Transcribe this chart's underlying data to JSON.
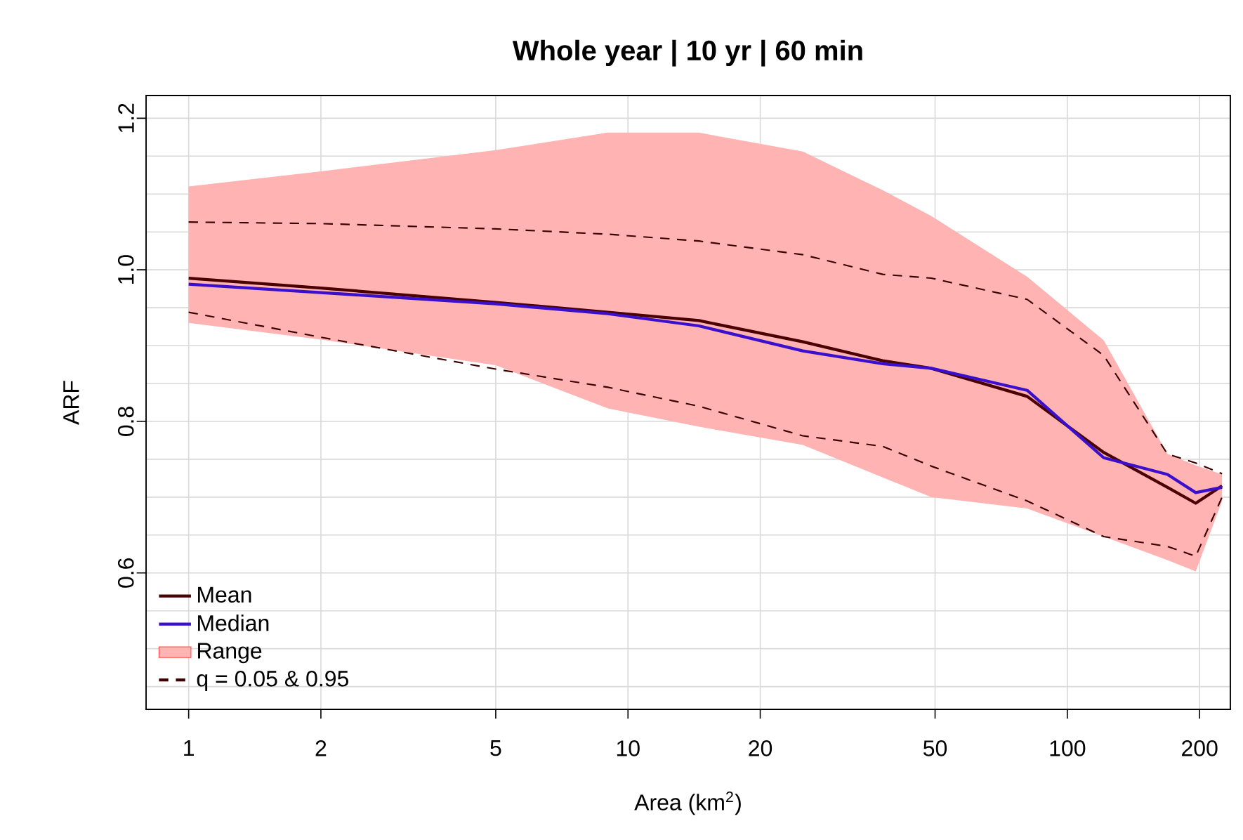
{
  "chart_data": {
    "type": "line",
    "title": "Whole year | 10 yr |  60 min",
    "xlabel": "Area (km$^{2}$)",
    "ylabel": "ARF",
    "log": "x",
    "x": [
      1,
      2,
      5,
      9,
      14.5,
      25,
      38,
      49,
      81,
      121,
      169,
      196,
      225
    ],
    "xlim": [
      0.8,
      235
    ],
    "xticks": [
      1,
      2,
      5,
      10,
      20,
      50,
      100,
      200
    ],
    "ylim": [
      0.42,
      1.23
    ],
    "yticks": [
      {
        "value": 0.45,
        "label": null
      },
      {
        "value": 0.5,
        "label": null
      },
      {
        "value": 0.55,
        "label": null
      },
      0.6,
      {
        "value": 0.65,
        "label": null
      },
      {
        "value": 0.7,
        "label": null
      },
      {
        "value": 0.75,
        "label": null
      },
      0.8,
      {
        "value": 0.85,
        "label": null
      },
      {
        "value": 0.9,
        "label": null
      },
      {
        "value": 0.95,
        "label": null
      },
      {
        "value": 1.0,
        "label": "1.0"
      },
      {
        "value": 1.05,
        "label": null
      },
      {
        "value": 1.1,
        "label": null
      },
      {
        "value": 1.15,
        "label": null
      },
      1.2
    ],
    "grid": true,
    "legend": "bottom left",
    "series": [
      {
        "name": "Mean",
        "color": "#4a0000",
        "values": [
          0.989,
          0.976,
          0.957,
          0.944,
          0.933,
          0.905,
          0.88,
          0.87,
          0.833,
          0.759,
          0.713,
          0.692,
          0.715
        ]
      },
      {
        "name": "Median",
        "color": "#3a10cc",
        "values": [
          0.981,
          0.97,
          0.955,
          0.942,
          0.926,
          0.893,
          0.876,
          0.87,
          0.841,
          0.752,
          0.73,
          0.706,
          0.713
        ]
      },
      {
        "name": "Range",
        "color": "#ffb3b3",
        "values": [
          null,
          null,
          null,
          null,
          null,
          null,
          null,
          null,
          null,
          null,
          null,
          null,
          null
        ],
        "lower": [
          0.93,
          0.908,
          0.874,
          0.817,
          0.793,
          0.769,
          0.726,
          0.7,
          0.685,
          0.648,
          0.617,
          0.602,
          0.695
        ],
        "upper": [
          1.11,
          1.13,
          1.158,
          1.181,
          1.181,
          1.156,
          1.105,
          1.071,
          0.991,
          0.907,
          0.757,
          0.742,
          0.73
        ]
      },
      {
        "name": "q =  0.05 & 0.95",
        "line_style": "dashed",
        "color": "#3a0000",
        "values": [
          0.944,
          0.911,
          0.869,
          0.845,
          0.82,
          0.781,
          0.767,
          0.741,
          0.695,
          0.648,
          0.635,
          0.622,
          0.7
        ]
      },
      {
        "line_style": "dashed",
        "color": "#3a0000",
        "values": [
          1.063,
          1.061,
          1.054,
          1.047,
          1.038,
          1.02,
          0.994,
          0.989,
          0.961,
          0.887,
          0.757,
          0.745,
          0.731
        ]
      }
    ]
  }
}
